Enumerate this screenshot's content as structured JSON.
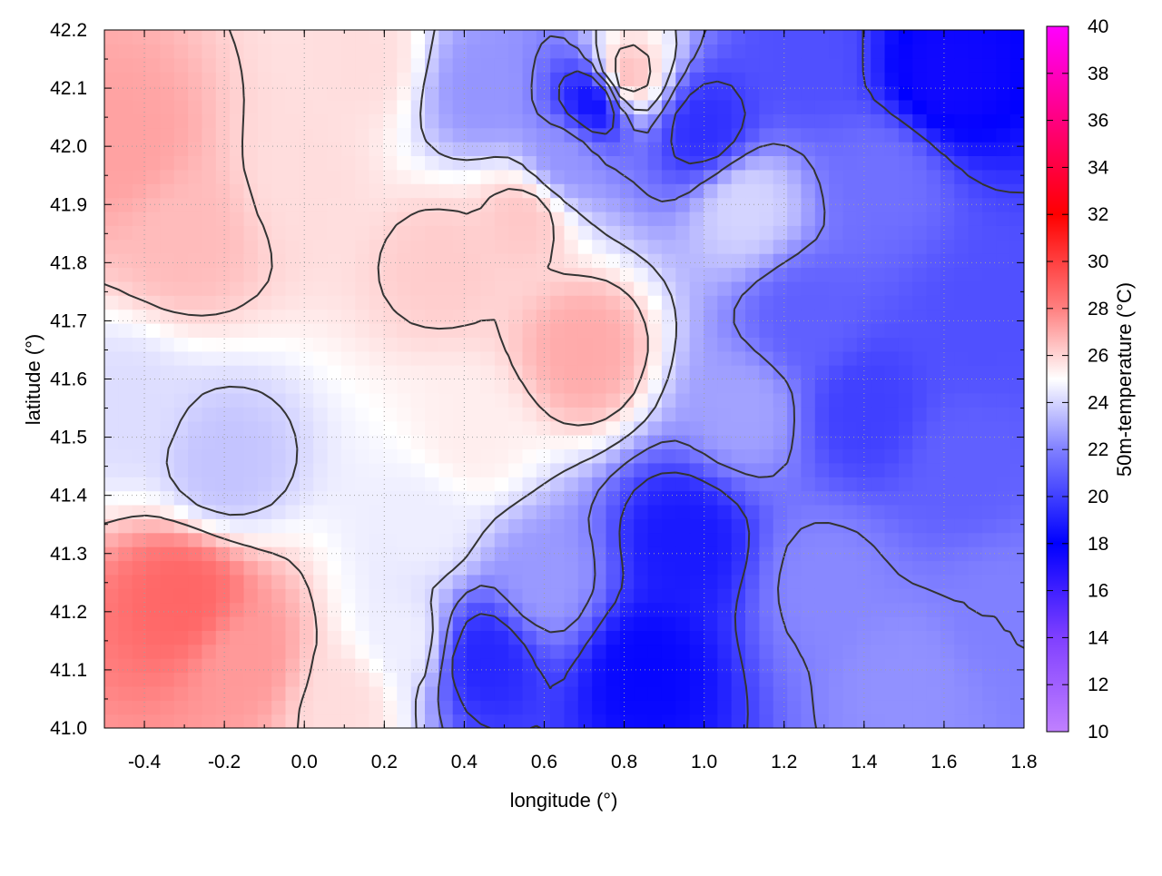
{
  "chart_data": {
    "type": "heatmap",
    "title": "",
    "xlabel": "longitude (°)",
    "ylabel": "latitude (°)",
    "xlim": [
      -0.5,
      1.8
    ],
    "ylim": [
      41.0,
      42.2
    ],
    "xticks": [
      "-0.4",
      "-0.2",
      "0.0",
      "0.2",
      "0.4",
      "0.6",
      "0.8",
      "1.0",
      "1.2",
      "1.4",
      "1.6",
      "1.8"
    ],
    "xtick_values": [
      -0.4,
      -0.2,
      0.0,
      0.2,
      0.4,
      0.6,
      0.8,
      1.0,
      1.2,
      1.4,
      1.6,
      1.8
    ],
    "yticks": [
      "41.0",
      "41.1",
      "41.2",
      "41.3",
      "41.4",
      "41.5",
      "41.6",
      "41.7",
      "41.8",
      "41.9",
      "42.0",
      "42.1",
      "42.2"
    ],
    "ytick_values": [
      41.0,
      41.1,
      41.2,
      41.3,
      41.4,
      41.5,
      41.6,
      41.7,
      41.8,
      41.9,
      42.0,
      42.1,
      42.2
    ],
    "grid": true,
    "colorbar": {
      "label": "50m-temperature (°C)",
      "range": [
        10,
        40
      ],
      "ticks": [
        "10",
        "12",
        "14",
        "16",
        "18",
        "20",
        "22",
        "24",
        "26",
        "28",
        "30",
        "32",
        "34",
        "36",
        "38",
        "40"
      ],
      "tick_values": [
        10,
        12,
        14,
        16,
        18,
        20,
        22,
        24,
        26,
        28,
        30,
        32,
        34,
        36,
        38,
        40
      ],
      "colors": [
        {
          "value": 10,
          "color": "#c080ff"
        },
        {
          "value": 14,
          "color": "#8040ff"
        },
        {
          "value": 18,
          "color": "#0000ff"
        },
        {
          "value": 22,
          "color": "#8080ff"
        },
        {
          "value": 25,
          "color": "#ffffff"
        },
        {
          "value": 28,
          "color": "#ff8080"
        },
        {
          "value": 32,
          "color": "#ff0000"
        },
        {
          "value": 36,
          "color": "#ff0080"
        },
        {
          "value": 40,
          "color": "#ff00ff"
        }
      ]
    },
    "field_anchors": [
      {
        "lon": -0.45,
        "lat": 42.0,
        "temp": 27.2
      },
      {
        "lon": -0.3,
        "lat": 41.85,
        "temp": 26.6
      },
      {
        "lon": -0.3,
        "lat": 41.22,
        "temp": 28.8
      },
      {
        "lon": -0.15,
        "lat": 41.12,
        "temp": 27.4
      },
      {
        "lon": -0.45,
        "lat": 41.55,
        "temp": 24.2
      },
      {
        "lon": -0.2,
        "lat": 41.45,
        "temp": 23.6
      },
      {
        "lon": 0.0,
        "lat": 41.95,
        "temp": 25.8
      },
      {
        "lon": 0.35,
        "lat": 41.8,
        "temp": 26.2
      },
      {
        "lon": 0.7,
        "lat": 41.65,
        "temp": 27.0
      },
      {
        "lon": 0.55,
        "lat": 41.88,
        "temp": 26.3
      },
      {
        "lon": 0.15,
        "lat": 42.15,
        "temp": 25.8
      },
      {
        "lon": 0.42,
        "lat": 41.5,
        "temp": 25.4
      },
      {
        "lon": 0.3,
        "lat": 41.35,
        "temp": 24.6
      },
      {
        "lon": 0.45,
        "lat": 42.1,
        "temp": 22.5
      },
      {
        "lon": 0.73,
        "lat": 42.08,
        "temp": 18.5
      },
      {
        "lon": 0.8,
        "lat": 42.12,
        "temp": 26.5
      },
      {
        "lon": 0.65,
        "lat": 41.98,
        "temp": 22.5
      },
      {
        "lon": 1.0,
        "lat": 42.03,
        "temp": 19.5
      },
      {
        "lon": 1.25,
        "lat": 42.15,
        "temp": 20.5
      },
      {
        "lon": 1.6,
        "lat": 42.12,
        "temp": 17.5
      },
      {
        "lon": 1.45,
        "lat": 41.95,
        "temp": 21.5
      },
      {
        "lon": 1.1,
        "lat": 41.9,
        "temp": 24.0
      },
      {
        "lon": 1.25,
        "lat": 41.7,
        "temp": 21.0
      },
      {
        "lon": 1.4,
        "lat": 41.55,
        "temp": 20.0
      },
      {
        "lon": 1.7,
        "lat": 41.7,
        "temp": 20.5
      },
      {
        "lon": 1.65,
        "lat": 41.45,
        "temp": 21.0
      },
      {
        "lon": 1.1,
        "lat": 41.55,
        "temp": 22.8
      },
      {
        "lon": 0.95,
        "lat": 41.32,
        "temp": 18.8
      },
      {
        "lon": 0.85,
        "lat": 41.1,
        "temp": 18.2
      },
      {
        "lon": 0.45,
        "lat": 41.12,
        "temp": 19.2
      },
      {
        "lon": 0.6,
        "lat": 41.25,
        "temp": 22.6
      },
      {
        "lon": 1.3,
        "lat": 41.25,
        "temp": 22.2
      },
      {
        "lon": 1.5,
        "lat": 41.08,
        "temp": 22.4
      },
      {
        "lon": 1.75,
        "lat": 41.2,
        "temp": 22.0
      },
      {
        "lon": 0.1,
        "lat": 41.05,
        "temp": 25.8
      },
      {
        "lon": 0.25,
        "lat": 41.15,
        "temp": 24.6
      }
    ]
  }
}
